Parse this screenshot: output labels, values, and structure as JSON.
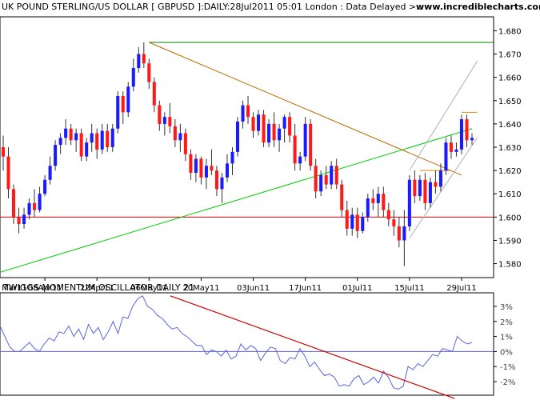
{
  "header": {
    "title": "UK POUND STERLING/US DOLLAR [ GBPUSD ]:DAILY:28Jul2011 05:01 London : Data Delayed >..",
    "brand": "www.incrediblecharts.com"
  },
  "oscillator": {
    "title": "TWIGGS MOMENTUM OSCILLATOR DAILY 21"
  },
  "colors": {
    "up_candle": "#1a1aff",
    "down_candle": "#ff1a1a",
    "wick": "#333333",
    "support_line": "#e00000",
    "resistance_top": "#008000",
    "trend_up": "#00cc00",
    "trend_down": "#b86a00",
    "channel": "#b0b0b0",
    "oscillator_line": "#5b64e0",
    "oscillator_trend": "#cc0000",
    "zero_line": "#6060d0"
  },
  "chart_data": [
    {
      "type": "candlestick",
      "title": "UK POUND STERLING/US DOLLAR [ GBPUSD ]:DAILY:28Jul2011 05:01 London : Data Delayed >..",
      "x_tick_labels": [
        "25Mar11",
        "08Apr11",
        "22Apr11",
        "06May11",
        "20May11",
        "03Jun11",
        "17Jun11",
        "01Jul11",
        "15Jul11",
        "29Jul11"
      ],
      "x_tick_labels_shown": [
        "Mar11",
        "08Apr11",
        "22Apr11",
        "06May11",
        "20May11",
        "03Jun11",
        "17Jun11",
        "01Jul11",
        "15Jul11",
        "29Jul11"
      ],
      "y_ticks": [
        1.58,
        1.59,
        1.6,
        1.61,
        1.62,
        1.63,
        1.64,
        1.65,
        1.66,
        1.67,
        1.68
      ],
      "y_tick_labels": [
        "1.580",
        "1.590",
        "1.600",
        "1.610",
        "1.620",
        "1.630",
        "1.640",
        "1.650",
        "1.660",
        "1.670",
        "1.680"
      ],
      "ylim": [
        1.574,
        1.686
      ],
      "y_axis_side": "right",
      "grid": false,
      "ohlc": [
        [
          1.63,
          1.635,
          1.62,
          1.626
        ],
        [
          1.626,
          1.63,
          1.608,
          1.612
        ],
        [
          1.612,
          1.614,
          1.597,
          1.6
        ],
        [
          1.6,
          1.604,
          1.593,
          1.597
        ],
        [
          1.597,
          1.604,
          1.595,
          1.601
        ],
        [
          1.601,
          1.608,
          1.599,
          1.606
        ],
        [
          1.606,
          1.612,
          1.6,
          1.603
        ],
        [
          1.603,
          1.613,
          1.602,
          1.61
        ],
        [
          1.61,
          1.618,
          1.609,
          1.616
        ],
        [
          1.616,
          1.626,
          1.614,
          1.622
        ],
        [
          1.622,
          1.633,
          1.62,
          1.631
        ],
        [
          1.631,
          1.636,
          1.627,
          1.634
        ],
        [
          1.634,
          1.642,
          1.631,
          1.638
        ],
        [
          1.638,
          1.64,
          1.631,
          1.633
        ],
        [
          1.633,
          1.638,
          1.628,
          1.636
        ],
        [
          1.636,
          1.638,
          1.624,
          1.626
        ],
        [
          1.626,
          1.634,
          1.624,
          1.632
        ],
        [
          1.632,
          1.64,
          1.628,
          1.636
        ],
        [
          1.636,
          1.638,
          1.625,
          1.629
        ],
        [
          1.629,
          1.64,
          1.627,
          1.637
        ],
        [
          1.637,
          1.64,
          1.628,
          1.63
        ],
        [
          1.63,
          1.64,
          1.628,
          1.638
        ],
        [
          1.638,
          1.654,
          1.636,
          1.652
        ],
        [
          1.652,
          1.654,
          1.64,
          1.645
        ],
        [
          1.645,
          1.658,
          1.643,
          1.656
        ],
        [
          1.656,
          1.668,
          1.654,
          1.664
        ],
        [
          1.664,
          1.673,
          1.662,
          1.67
        ],
        [
          1.67,
          1.675,
          1.664,
          1.666
        ],
        [
          1.666,
          1.668,
          1.655,
          1.658
        ],
        [
          1.658,
          1.66,
          1.645,
          1.648
        ],
        [
          1.648,
          1.65,
          1.637,
          1.64
        ],
        [
          1.64,
          1.645,
          1.635,
          1.643
        ],
        [
          1.643,
          1.649,
          1.636,
          1.639
        ],
        [
          1.639,
          1.642,
          1.63,
          1.633
        ],
        [
          1.633,
          1.64,
          1.628,
          1.636
        ],
        [
          1.636,
          1.638,
          1.624,
          1.627
        ],
        [
          1.627,
          1.629,
          1.616,
          1.619
        ],
        [
          1.619,
          1.627,
          1.615,
          1.625
        ],
        [
          1.625,
          1.626,
          1.614,
          1.617
        ],
        [
          1.617,
          1.625,
          1.612,
          1.622
        ],
        [
          1.622,
          1.629,
          1.618,
          1.62
        ],
        [
          1.62,
          1.622,
          1.609,
          1.612
        ],
        [
          1.612,
          1.619,
          1.606,
          1.617
        ],
        [
          1.617,
          1.627,
          1.615,
          1.623
        ],
        [
          1.623,
          1.63,
          1.618,
          1.628
        ],
        [
          1.628,
          1.643,
          1.626,
          1.641
        ],
        [
          1.641,
          1.65,
          1.638,
          1.648
        ],
        [
          1.648,
          1.652,
          1.64,
          1.643
        ],
        [
          1.643,
          1.645,
          1.634,
          1.637
        ],
        [
          1.637,
          1.646,
          1.635,
          1.644
        ],
        [
          1.644,
          1.646,
          1.63,
          1.632
        ],
        [
          1.632,
          1.642,
          1.63,
          1.64
        ],
        [
          1.64,
          1.645,
          1.63,
          1.633
        ],
        [
          1.633,
          1.64,
          1.628,
          1.638
        ],
        [
          1.638,
          1.644,
          1.632,
          1.643
        ],
        [
          1.643,
          1.645,
          1.632,
          1.635
        ],
        [
          1.635,
          1.64,
          1.62,
          1.623
        ],
        [
          1.623,
          1.628,
          1.62,
          1.626
        ],
        [
          1.626,
          1.643,
          1.624,
          1.64
        ],
        [
          1.64,
          1.642,
          1.62,
          1.622
        ],
        [
          1.622,
          1.625,
          1.608,
          1.611
        ],
        [
          1.611,
          1.62,
          1.609,
          1.618
        ],
        [
          1.618,
          1.622,
          1.612,
          1.614
        ],
        [
          1.614,
          1.624,
          1.612,
          1.622
        ],
        [
          1.622,
          1.625,
          1.612,
          1.614
        ],
        [
          1.614,
          1.616,
          1.6,
          1.603
        ],
        [
          1.603,
          1.607,
          1.592,
          1.595
        ],
        [
          1.595,
          1.604,
          1.592,
          1.601
        ],
        [
          1.601,
          1.604,
          1.591,
          1.594
        ],
        [
          1.594,
          1.602,
          1.593,
          1.6
        ],
        [
          1.6,
          1.61,
          1.598,
          1.608
        ],
        [
          1.608,
          1.612,
          1.603,
          1.606
        ],
        [
          1.606,
          1.613,
          1.6,
          1.61
        ],
        [
          1.61,
          1.613,
          1.6,
          1.603
        ],
        [
          1.603,
          1.606,
          1.596,
          1.599
        ],
        [
          1.599,
          1.603,
          1.592,
          1.596
        ],
        [
          1.596,
          1.6,
          1.587,
          1.59
        ],
        [
          1.59,
          1.603,
          1.579,
          1.596
        ],
        [
          1.596,
          1.618,
          1.594,
          1.616
        ],
        [
          1.616,
          1.62,
          1.606,
          1.609
        ],
        [
          1.609,
          1.618,
          1.607,
          1.616
        ],
        [
          1.616,
          1.619,
          1.603,
          1.606
        ],
        [
          1.606,
          1.617,
          1.604,
          1.615
        ],
        [
          1.615,
          1.62,
          1.61,
          1.613
        ],
        [
          1.613,
          1.623,
          1.611,
          1.62
        ],
        [
          1.62,
          1.634,
          1.618,
          1.632
        ],
        [
          1.632,
          1.635,
          1.625,
          1.628
        ],
        [
          1.628,
          1.632,
          1.626,
          1.629
        ],
        [
          1.629,
          1.644,
          1.627,
          1.642
        ],
        [
          1.642,
          1.644,
          1.63,
          1.633
        ],
        [
          1.633,
          1.636,
          1.631,
          1.634
        ]
      ],
      "horizontal_lines": [
        {
          "name": "support",
          "value": 1.6
        },
        {
          "name": "resistance",
          "value": 1.675
        }
      ],
      "trendlines": [
        {
          "name": "rising-trendline",
          "from": {
            "bar": -1,
            "value": 1.576
          },
          "to": {
            "bar": 90,
            "value": 1.638
          }
        },
        {
          "name": "falling-trendline",
          "from": {
            "bar": 28,
            "value": 1.675
          },
          "to": {
            "bar": 88,
            "value": 1.618
          }
        },
        {
          "name": "channel-upper",
          "from": {
            "bar": 78,
            "value": 1.62
          },
          "to": {
            "bar": 91,
            "value": 1.667
          }
        },
        {
          "name": "channel-lower",
          "from": {
            "bar": 78,
            "value": 1.591
          },
          "to": {
            "bar": 91,
            "value": 1.634
          }
        }
      ],
      "level_segments": [
        {
          "name": "target-high",
          "from_bar": 88,
          "to_bar": 91,
          "value": 1.645
        },
        {
          "name": "target-low",
          "from_bar": 80,
          "to_bar": 86,
          "value": 1.62
        }
      ]
    },
    {
      "type": "line",
      "title": "TWIGGS MOMENTUM OSCILLATOR DAILY 21",
      "y_ticks": [
        -2,
        -1,
        0,
        1,
        2,
        3
      ],
      "y_tick_labels": [
        "-2%",
        "-1%",
        "0%",
        "1%",
        "2%",
        "3%"
      ],
      "ylim": [
        -2.9,
        3.9
      ],
      "y_axis_side": "right",
      "zero_line": true,
      "series": [
        {
          "values": [
            1.7,
            1.0,
            0.3,
            0.0,
            0.0,
            0.3,
            0.6,
            0.2,
            0.0,
            0.5,
            0.9,
            0.7,
            1.3,
            1.2,
            1.7,
            1.0,
            1.5,
            0.8,
            1.8,
            1.2,
            1.6,
            0.8,
            1.3,
            2.0,
            1.2,
            2.3,
            2.2,
            3.0,
            3.5,
            3.7,
            3.0,
            2.8,
            2.4,
            2.2,
            1.8,
            1.5,
            1.6,
            1.2,
            1.0,
            0.7,
            0.4,
            0.4,
            -0.2,
            0.1,
            0.0,
            -0.3,
            0.1,
            -0.5,
            -0.3,
            0.5,
            0.1,
            0.4,
            0.2,
            -0.6,
            -0.1,
            0.3,
            0.2,
            -0.6,
            -0.8,
            -0.4,
            -0.5,
            0.2,
            -0.3,
            -1.0,
            -0.7,
            -1.2,
            -1.6,
            -1.5,
            -1.7,
            -2.3,
            -2.2,
            -2.3,
            -1.8,
            -1.6,
            -2.2,
            -2.0,
            -1.7,
            -2.1,
            -1.3,
            -1.7,
            -2.4,
            -2.5,
            -2.3,
            -1.0,
            -1.2,
            -0.8,
            -1.0,
            -0.6,
            -0.2,
            -0.3,
            0.2,
            0.1,
            0.0,
            1.0,
            0.7,
            0.5,
            0.6
          ]
        }
      ],
      "trendlines": [
        {
          "name": "oscillator-trendline",
          "from": {
            "pos": 0.345,
            "value": 3.7
          },
          "to": {
            "pos": 0.84,
            "value": -2.8
          }
        }
      ]
    }
  ]
}
